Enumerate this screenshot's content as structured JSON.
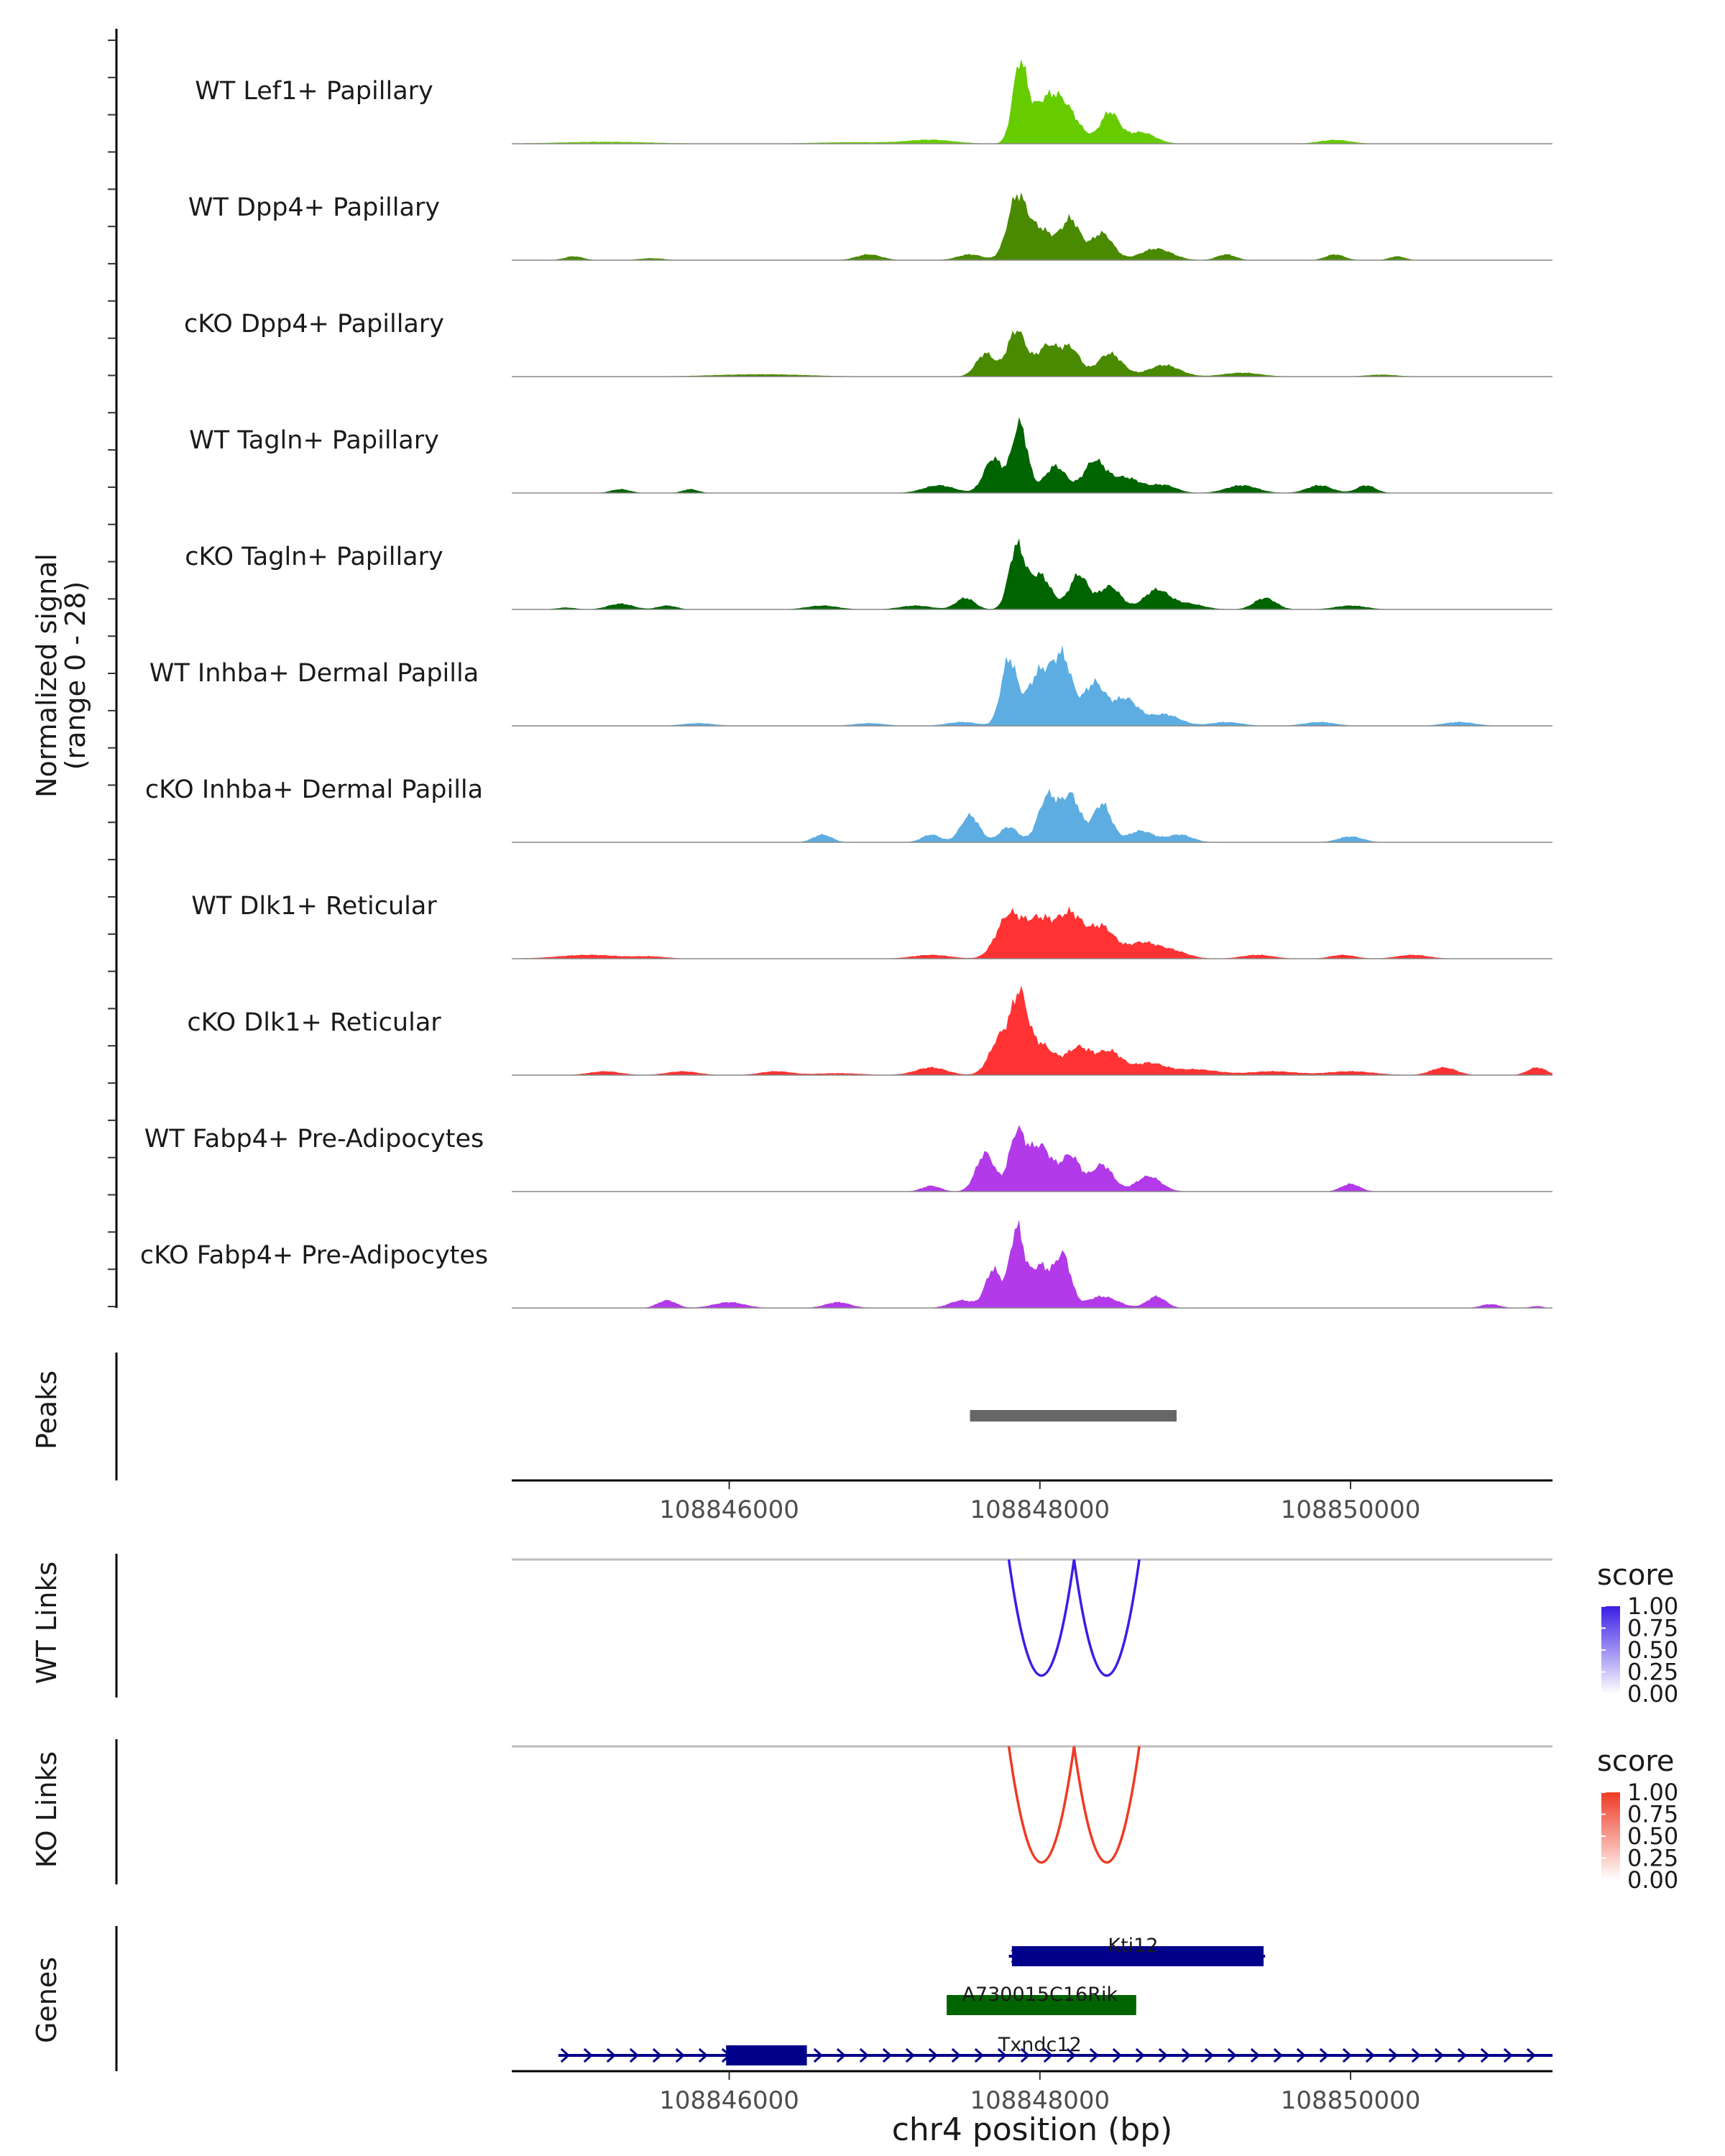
{
  "chart_data": {
    "type": "coverage-track-plot",
    "x_axis": {
      "label": "chr4 position (bp)",
      "range": [
        108844600,
        108851300
      ],
      "ticks": [
        108846000,
        108848000,
        108850000
      ],
      "tick_labels": [
        "108846000",
        "108848000",
        "108850000"
      ]
    },
    "coverage": {
      "ylabel_line1": "Normalized signal",
      "ylabel_line2": "(range 0 - 28)",
      "yrange": [
        0,
        28
      ],
      "tracks": [
        {
          "label": "WT Lef1+ Papillary",
          "color": "#66cc00",
          "peaks": [
            [
              108847870,
              19,
              45
            ],
            [
              108848140,
              10,
              100
            ],
            [
              108848450,
              8,
              60
            ],
            [
              108848000,
              7,
              90
            ],
            [
              108848650,
              3,
              90
            ],
            [
              108847300,
              1,
              150
            ],
            [
              108849900,
              1,
              100
            ],
            [
              108845200,
              0.5,
              300
            ],
            [
              108846800,
              0.4,
              250
            ]
          ]
        },
        {
          "label": "WT Dpp4+ Papillary",
          "color": "#4a8a00",
          "peaks": [
            [
              108847850,
              15,
              60
            ],
            [
              108848000,
              8,
              90
            ],
            [
              108848200,
              10,
              60
            ],
            [
              108848400,
              7,
              70
            ],
            [
              108848750,
              3,
              100
            ],
            [
              108847550,
              1.5,
              80
            ],
            [
              108849200,
              1.5,
              60
            ],
            [
              108846900,
              1.5,
              80
            ],
            [
              108849900,
              1.5,
              60
            ],
            [
              108850300,
              1,
              50
            ],
            [
              108845000,
              1,
              60
            ],
            [
              108845500,
              0.5,
              80
            ]
          ]
        },
        {
          "label": "cKO Dpp4+ Papillary",
          "color": "#4a8a00",
          "peaks": [
            [
              108847850,
              12,
              60
            ],
            [
              108847650,
              6,
              60
            ],
            [
              108848050,
              8,
              70
            ],
            [
              108848200,
              7,
              60
            ],
            [
              108848450,
              6,
              80
            ],
            [
              108848800,
              3,
              100
            ],
            [
              108849300,
              1,
              120
            ],
            [
              108846200,
              0.6,
              300
            ],
            [
              108850200,
              0.5,
              100
            ]
          ]
        },
        {
          "label": "WT Tagln+ Papillary",
          "color": "#006400",
          "peaks": [
            [
              108847870,
              18,
              50
            ],
            [
              108847700,
              9,
              60
            ],
            [
              108848100,
              7,
              70
            ],
            [
              108848350,
              8,
              70
            ],
            [
              108848550,
              4,
              100
            ],
            [
              108847350,
              2,
              100
            ],
            [
              108848800,
              2,
              80
            ],
            [
              108849300,
              2,
              100
            ],
            [
              108849800,
              2,
              80
            ],
            [
              108850100,
              2,
              60
            ],
            [
              108845300,
              1,
              60
            ],
            [
              108845750,
              1,
              50
            ]
          ]
        },
        {
          "label": "cKO Tagln+ Papillary",
          "color": "#006400",
          "peaks": [
            [
              108847850,
              16,
              50
            ],
            [
              108848000,
              9,
              70
            ],
            [
              108848250,
              9,
              60
            ],
            [
              108848450,
              6,
              70
            ],
            [
              108848750,
              5,
              80
            ],
            [
              108847520,
              3,
              60
            ],
            [
              108847200,
              1,
              100
            ],
            [
              108849450,
              3,
              70
            ],
            [
              108848950,
              1.5,
              100
            ],
            [
              108845300,
              1.5,
              80
            ],
            [
              108845600,
              1,
              60
            ],
            [
              108846600,
              1,
              100
            ],
            [
              108850000,
              1,
              100
            ],
            [
              108844950,
              0.5,
              60
            ]
          ]
        },
        {
          "label": "WT Inhba+ Dermal Papilla",
          "color": "#5dade2",
          "peaks": [
            [
              108847800,
              17,
              50
            ],
            [
              108848000,
              14,
              80
            ],
            [
              108848150,
              16,
              60
            ],
            [
              108848350,
              11,
              70
            ],
            [
              108848550,
              7,
              80
            ],
            [
              108848800,
              3,
              100
            ],
            [
              108847500,
              1,
              100
            ],
            [
              108849200,
              1,
              100
            ],
            [
              108849800,
              1,
              100
            ],
            [
              108850700,
              1,
              100
            ],
            [
              108845800,
              0.7,
              100
            ],
            [
              108846900,
              0.7,
              100
            ]
          ]
        },
        {
          "label": "cKO Inhba+ Dermal Papilla",
          "color": "#5dade2",
          "peaks": [
            [
              108847550,
              7,
              60
            ],
            [
              108847800,
              4,
              60
            ],
            [
              108848050,
              12,
              60
            ],
            [
              108848200,
              12,
              60
            ],
            [
              108848400,
              10,
              60
            ],
            [
              108848650,
              3,
              80
            ],
            [
              108848900,
              2,
              80
            ],
            [
              108846600,
              2,
              60
            ],
            [
              108847300,
              2,
              60
            ],
            [
              108850000,
              1.5,
              80
            ]
          ]
        },
        {
          "label": "WT Dlk1+ Reticular",
          "color": "#ff3333",
          "peaks": [
            [
              108847800,
              11,
              80
            ],
            [
              108848000,
              10,
              90
            ],
            [
              108848200,
              11,
              80
            ],
            [
              108848400,
              8,
              80
            ],
            [
              108848650,
              4,
              100
            ],
            [
              108848850,
              2,
              100
            ],
            [
              108847300,
              1,
              120
            ],
            [
              108849400,
              1,
              100
            ],
            [
              108849950,
              1,
              80
            ],
            [
              108850400,
              1,
              100
            ],
            [
              108845100,
              1,
              200
            ],
            [
              108845500,
              0.5,
              100
            ]
          ]
        },
        {
          "label": "cKO Dlk1+ Reticular",
          "color": "#ff3333",
          "peaks": [
            [
              108847870,
              17,
              50
            ],
            [
              108847750,
              10,
              70
            ],
            [
              108848000,
              8,
              90
            ],
            [
              108848250,
              7,
              80
            ],
            [
              108848450,
              6,
              80
            ],
            [
              108848700,
              3,
              100
            ],
            [
              108847300,
              2,
              100
            ],
            [
              108845200,
              1,
              100
            ],
            [
              108845700,
              1,
              100
            ],
            [
              108846300,
              1,
              100
            ],
            [
              108849000,
              1.5,
              150
            ],
            [
              108849500,
              1,
              150
            ],
            [
              108850000,
              1,
              150
            ],
            [
              108850600,
              2,
              80
            ],
            [
              108851200,
              2,
              60
            ],
            [
              108846700,
              0.5,
              150
            ]
          ]
        },
        {
          "label": "WT Fabp4+ Pre-Adipocytes",
          "color": "#b23ae8",
          "peaks": [
            [
              108847850,
              14,
              50
            ],
            [
              108847650,
              10,
              60
            ],
            [
              108848000,
              12,
              80
            ],
            [
              108848200,
              9,
              60
            ],
            [
              108848400,
              7,
              70
            ],
            [
              108848700,
              4,
              80
            ],
            [
              108847300,
              1.5,
              60
            ],
            [
              108850000,
              2,
              60
            ]
          ]
        },
        {
          "label": "cKO Fabp4+ Pre-Adipocytes",
          "color": "#b23ae8",
          "peaks": [
            [
              108847850,
              20,
              45
            ],
            [
              108847700,
              10,
              50
            ],
            [
              108848000,
              11,
              70
            ],
            [
              108848150,
              13,
              50
            ],
            [
              108848400,
              3,
              100
            ],
            [
              108848750,
              3,
              60
            ],
            [
              108847500,
              2,
              80
            ],
            [
              108845600,
              2,
              60
            ],
            [
              108846000,
              1.5,
              100
            ],
            [
              108846700,
              1.5,
              80
            ],
            [
              108850900,
              1,
              60
            ],
            [
              108851200,
              0.5,
              40
            ]
          ]
        }
      ]
    },
    "peaks_track": {
      "label": "Peaks",
      "start": 108847550,
      "end": 108848880,
      "color": "#666666"
    },
    "links": [
      {
        "label": "WT Links",
        "color": "#3a1ee6",
        "legend_title": "score",
        "legend_ticks": [
          "1.00",
          "0.75",
          "0.50",
          "0.25",
          "0.00"
        ],
        "arcs": [
          [
            108847800,
            108848220
          ],
          [
            108848220,
            108848640
          ]
        ]
      },
      {
        "label": "KO Links",
        "color": "#ee3a24",
        "legend_title": "score",
        "legend_ticks": [
          "1.00",
          "0.75",
          "0.50",
          "0.25",
          "0.00"
        ],
        "arcs": [
          [
            108847800,
            108848220
          ],
          [
            108848220,
            108848640
          ]
        ]
      }
    ],
    "genes": {
      "label": "Genes",
      "items": [
        {
          "name": "Kti12",
          "start": 108847800,
          "end": 108849450,
          "color": "#00008b",
          "row": 0,
          "thick": [
            [
              108847820,
              108849440
            ]
          ]
        },
        {
          "name": "A730015C16Rik",
          "start": 108847400,
          "end": 108848620,
          "color": "#006400",
          "row": 1,
          "thick": [
            [
              108847400,
              108848620
            ]
          ]
        },
        {
          "name": "Txndc12",
          "start": 108844900,
          "end": 108851300,
          "color": "#00008b",
          "row": 2,
          "thick": [
            [
              108845980,
              108846500
            ]
          ]
        }
      ]
    }
  }
}
